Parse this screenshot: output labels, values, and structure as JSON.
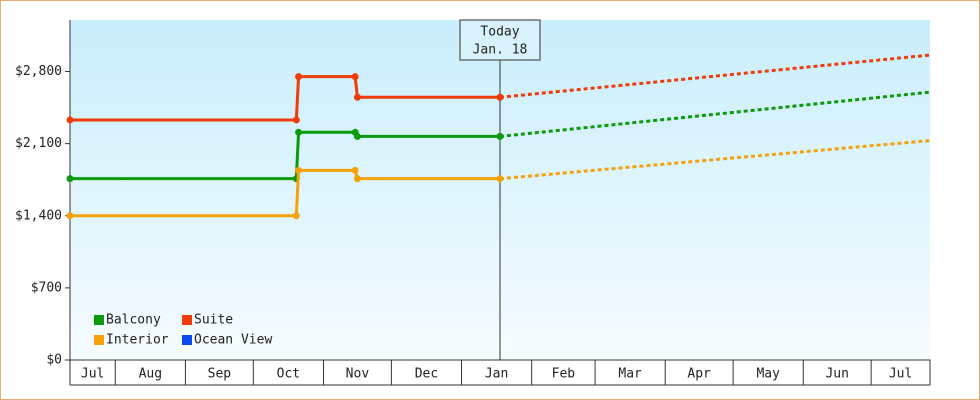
{
  "chart_data": {
    "type": "line",
    "step": true,
    "x": [
      0,
      100,
      101,
      126,
      127,
      190,
      380
    ],
    "series": [
      {
        "name": "Balcony",
        "color": "#0a9a0a",
        "values": [
          1760,
          1760,
          2210,
          2210,
          2170,
          2170,
          2600
        ]
      },
      {
        "name": "Suite",
        "color": "#f03c0a",
        "values": [
          2330,
          2330,
          2750,
          2750,
          2550,
          2550,
          2960
        ]
      },
      {
        "name": "Interior",
        "color": "#f5a20a",
        "values": [
          1400,
          1400,
          1840,
          1840,
          1760,
          1760,
          2130
        ]
      },
      {
        "name": "Ocean View",
        "color": "#0a4af0",
        "values": [
          null,
          null,
          null,
          null,
          null,
          null,
          null
        ]
      }
    ],
    "xlim": [
      0,
      380
    ],
    "xticks": [
      {
        "value": 0,
        "label": "Jul"
      },
      {
        "value": 20,
        "label": "Aug"
      },
      {
        "value": 51,
        "label": "Sep"
      },
      {
        "value": 81,
        "label": "Oct"
      },
      {
        "value": 112,
        "label": "Nov"
      },
      {
        "value": 142,
        "label": "Dec"
      },
      {
        "value": 173,
        "label": "Jan"
      },
      {
        "value": 204,
        "label": "Feb"
      },
      {
        "value": 232,
        "label": "Mar"
      },
      {
        "value": 263,
        "label": "Apr"
      },
      {
        "value": 293,
        "label": "May"
      },
      {
        "value": 324,
        "label": "Jun"
      },
      {
        "value": 354,
        "label": "Jul"
      }
    ],
    "ylim": [
      0,
      3300
    ],
    "yticks": [
      {
        "value": 0,
        "label": "$0"
      },
      {
        "value": 700,
        "label": "$700"
      },
      {
        "value": 1400,
        "label": "$1,400"
      },
      {
        "value": 2100,
        "label": "$2,100"
      },
      {
        "value": 2800,
        "label": "$2,800"
      }
    ],
    "today": {
      "x": 190,
      "label": [
        "Today",
        "Jan. 18"
      ]
    },
    "legend": "lower-left"
  }
}
